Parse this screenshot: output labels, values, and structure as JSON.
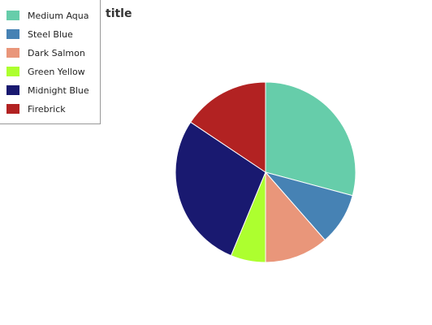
{
  "chart_data": {
    "type": "pie",
    "title": "title",
    "categories": [
      "Medium Aqua",
      "Steel Blue",
      "Dark Salmon",
      "Green Yellow",
      "Midnight Blue",
      "Firebrick"
    ],
    "values": [
      28,
      9,
      11,
      6,
      27,
      15
    ],
    "colors": [
      "#66cdaa",
      "#4682b4",
      "#e9967a",
      "#adff2f",
      "#191970",
      "#b22222"
    ],
    "legend_position": "top-left"
  }
}
